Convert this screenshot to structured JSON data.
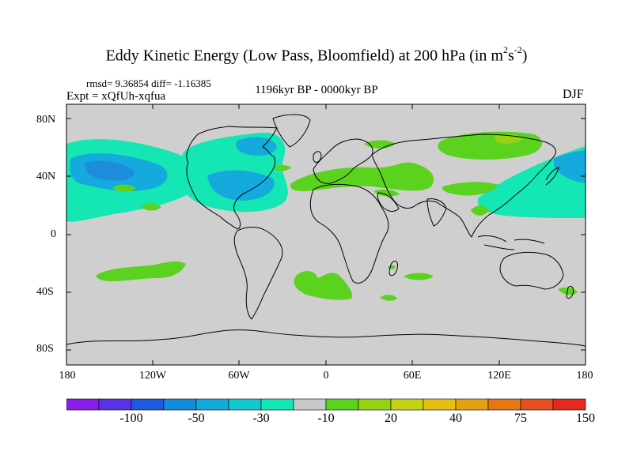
{
  "title": {
    "main": "Eddy Kinetic Energy (Low Pass, Bloomfield) at 200 hPa (in m",
    "sup1": "2",
    "mid": "s",
    "sup2": "-2",
    "end": ")"
  },
  "stats": "rmsd= 9.36854 diff= -1.16385",
  "expt": "Expt = xQfUh-xqfua",
  "period": "1196kyr BP - 0000kyr BP",
  "season": "DJF",
  "axes": {
    "y_labels": [
      "80N",
      "40N",
      "0",
      "40S",
      "80S"
    ],
    "x_labels": [
      "180",
      "120W",
      "60W",
      "0",
      "60E",
      "120E",
      "180"
    ]
  },
  "colorbar": {
    "colors": [
      "#8a1ee6",
      "#5a32e6",
      "#1e5adc",
      "#148cdc",
      "#14aade",
      "#14c8d2",
      "#14e6b4",
      "#c8c8c8",
      "#5ad21e",
      "#96d214",
      "#c3d214",
      "#e6be14",
      "#e6a014",
      "#e67814",
      "#e6501e",
      "#e6281e"
    ],
    "labels": [
      "-100",
      "-50",
      "-30",
      "-10",
      "20",
      "40",
      "75",
      "150"
    ]
  },
  "colors": {
    "land_ocean_background": "#cfcfcf",
    "positive_anomaly": "#5ad21e",
    "negative_anomaly_strong": "#14aade",
    "negative_anomaly_weak": "#14e6b4"
  }
}
